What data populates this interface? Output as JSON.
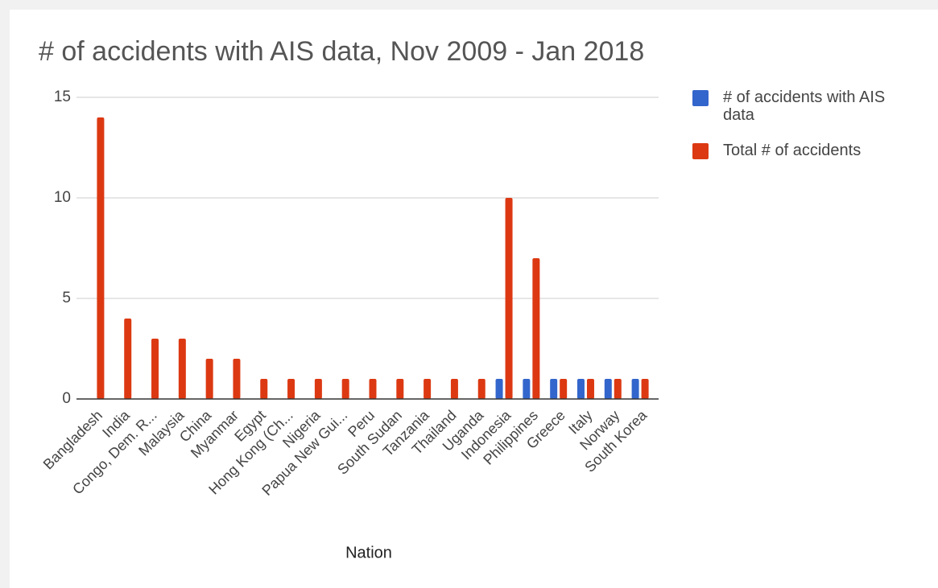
{
  "chart_data": {
    "type": "bar",
    "title": "# of accidents with AIS data, Nov 2009 - Jan 2018",
    "xlabel": "Nation",
    "categories": [
      "Bangladesh",
      "India",
      "Congo, Dem. R...",
      "Malaysia",
      "China",
      "Myanmar",
      "Egypt",
      "Hong Kong (Ch...",
      "Nigeria",
      "Papua New Gui...",
      "Peru",
      "South Sudan",
      "Tanzania",
      "Thailand",
      "Uganda",
      "Indonesia",
      "Philippines",
      "Greece",
      "Italy",
      "Norway",
      "South Korea"
    ],
    "series": [
      {
        "name": "# of accidents with AIS data",
        "color": "#3366cc",
        "values": [
          0,
          0,
          0,
          0,
          0,
          0,
          0,
          0,
          0,
          0,
          0,
          0,
          0,
          0,
          0,
          1,
          1,
          1,
          1,
          1,
          1
        ]
      },
      {
        "name": "Total # of accidents",
        "color": "#dc3912",
        "values": [
          14,
          4,
          3,
          3,
          2,
          2,
          1,
          1,
          1,
          1,
          1,
          1,
          1,
          1,
          1,
          10,
          7,
          1,
          1,
          1,
          1
        ]
      }
    ],
    "ylim": [
      0,
      15
    ],
    "yticks": [
      0,
      5,
      10,
      15
    ],
    "grid": true,
    "legend": "right"
  }
}
